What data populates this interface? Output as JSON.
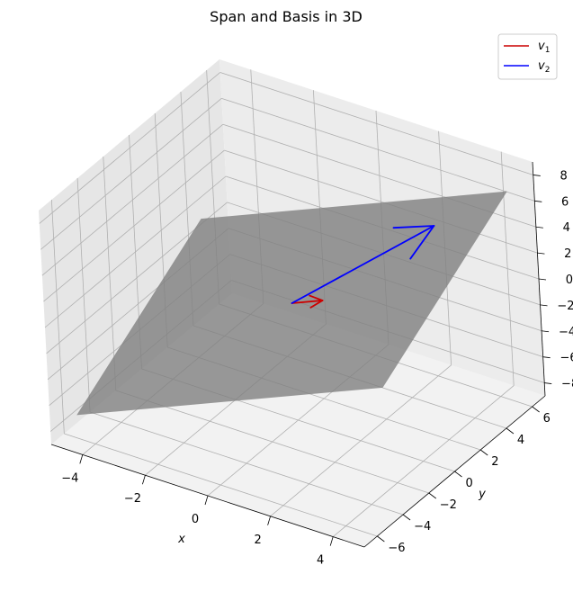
{
  "chart_data": {
    "type": "3d-line-surface",
    "title": "Span and Basis in 3D",
    "xlabel": "x",
    "ylabel": "y",
    "zlabel": "",
    "xlim": [
      -5,
      5
    ],
    "ylim": [
      -7,
      7
    ],
    "zlim": [
      -9,
      9
    ],
    "x_ticks": [
      -4,
      -2,
      0,
      2,
      4
    ],
    "y_ticks": [
      -6,
      -4,
      -2,
      0,
      2,
      4,
      6
    ],
    "z_ticks": [
      -8,
      -6,
      -4,
      -2,
      0,
      2,
      4,
      6,
      8
    ],
    "x_tick_labels": [
      "−4",
      "−2",
      "0",
      "2",
      "4"
    ],
    "y_tick_labels": [
      "−6",
      "−4",
      "−2",
      "0",
      "2",
      "4",
      "6"
    ],
    "z_tick_labels": [
      "−8",
      "−6",
      "−4",
      "−2",
      "0",
      "2",
      "4",
      "6",
      "8"
    ],
    "grid": true,
    "legend_position": "top-right",
    "surface": {
      "description": "span of v1 and v2",
      "color": "#808080",
      "corners": [
        [
          -5,
          -5,
          -8.4
        ],
        [
          5,
          -5,
          1.6
        ],
        [
          5,
          5,
          8.4
        ],
        [
          -5,
          5,
          -1.6
        ]
      ]
    },
    "series": [
      {
        "name": "v1",
        "label_base": "v",
        "label_sub": "1",
        "color": "#cc0000",
        "start": [
          0,
          0,
          0
        ],
        "end": [
          1,
          0,
          1
        ]
      },
      {
        "name": "v2",
        "label_base": "v",
        "label_sub": "2",
        "color": "#0000ff",
        "start": [
          0,
          0,
          0
        ],
        "end": [
          3,
          4,
          5
        ]
      }
    ]
  }
}
